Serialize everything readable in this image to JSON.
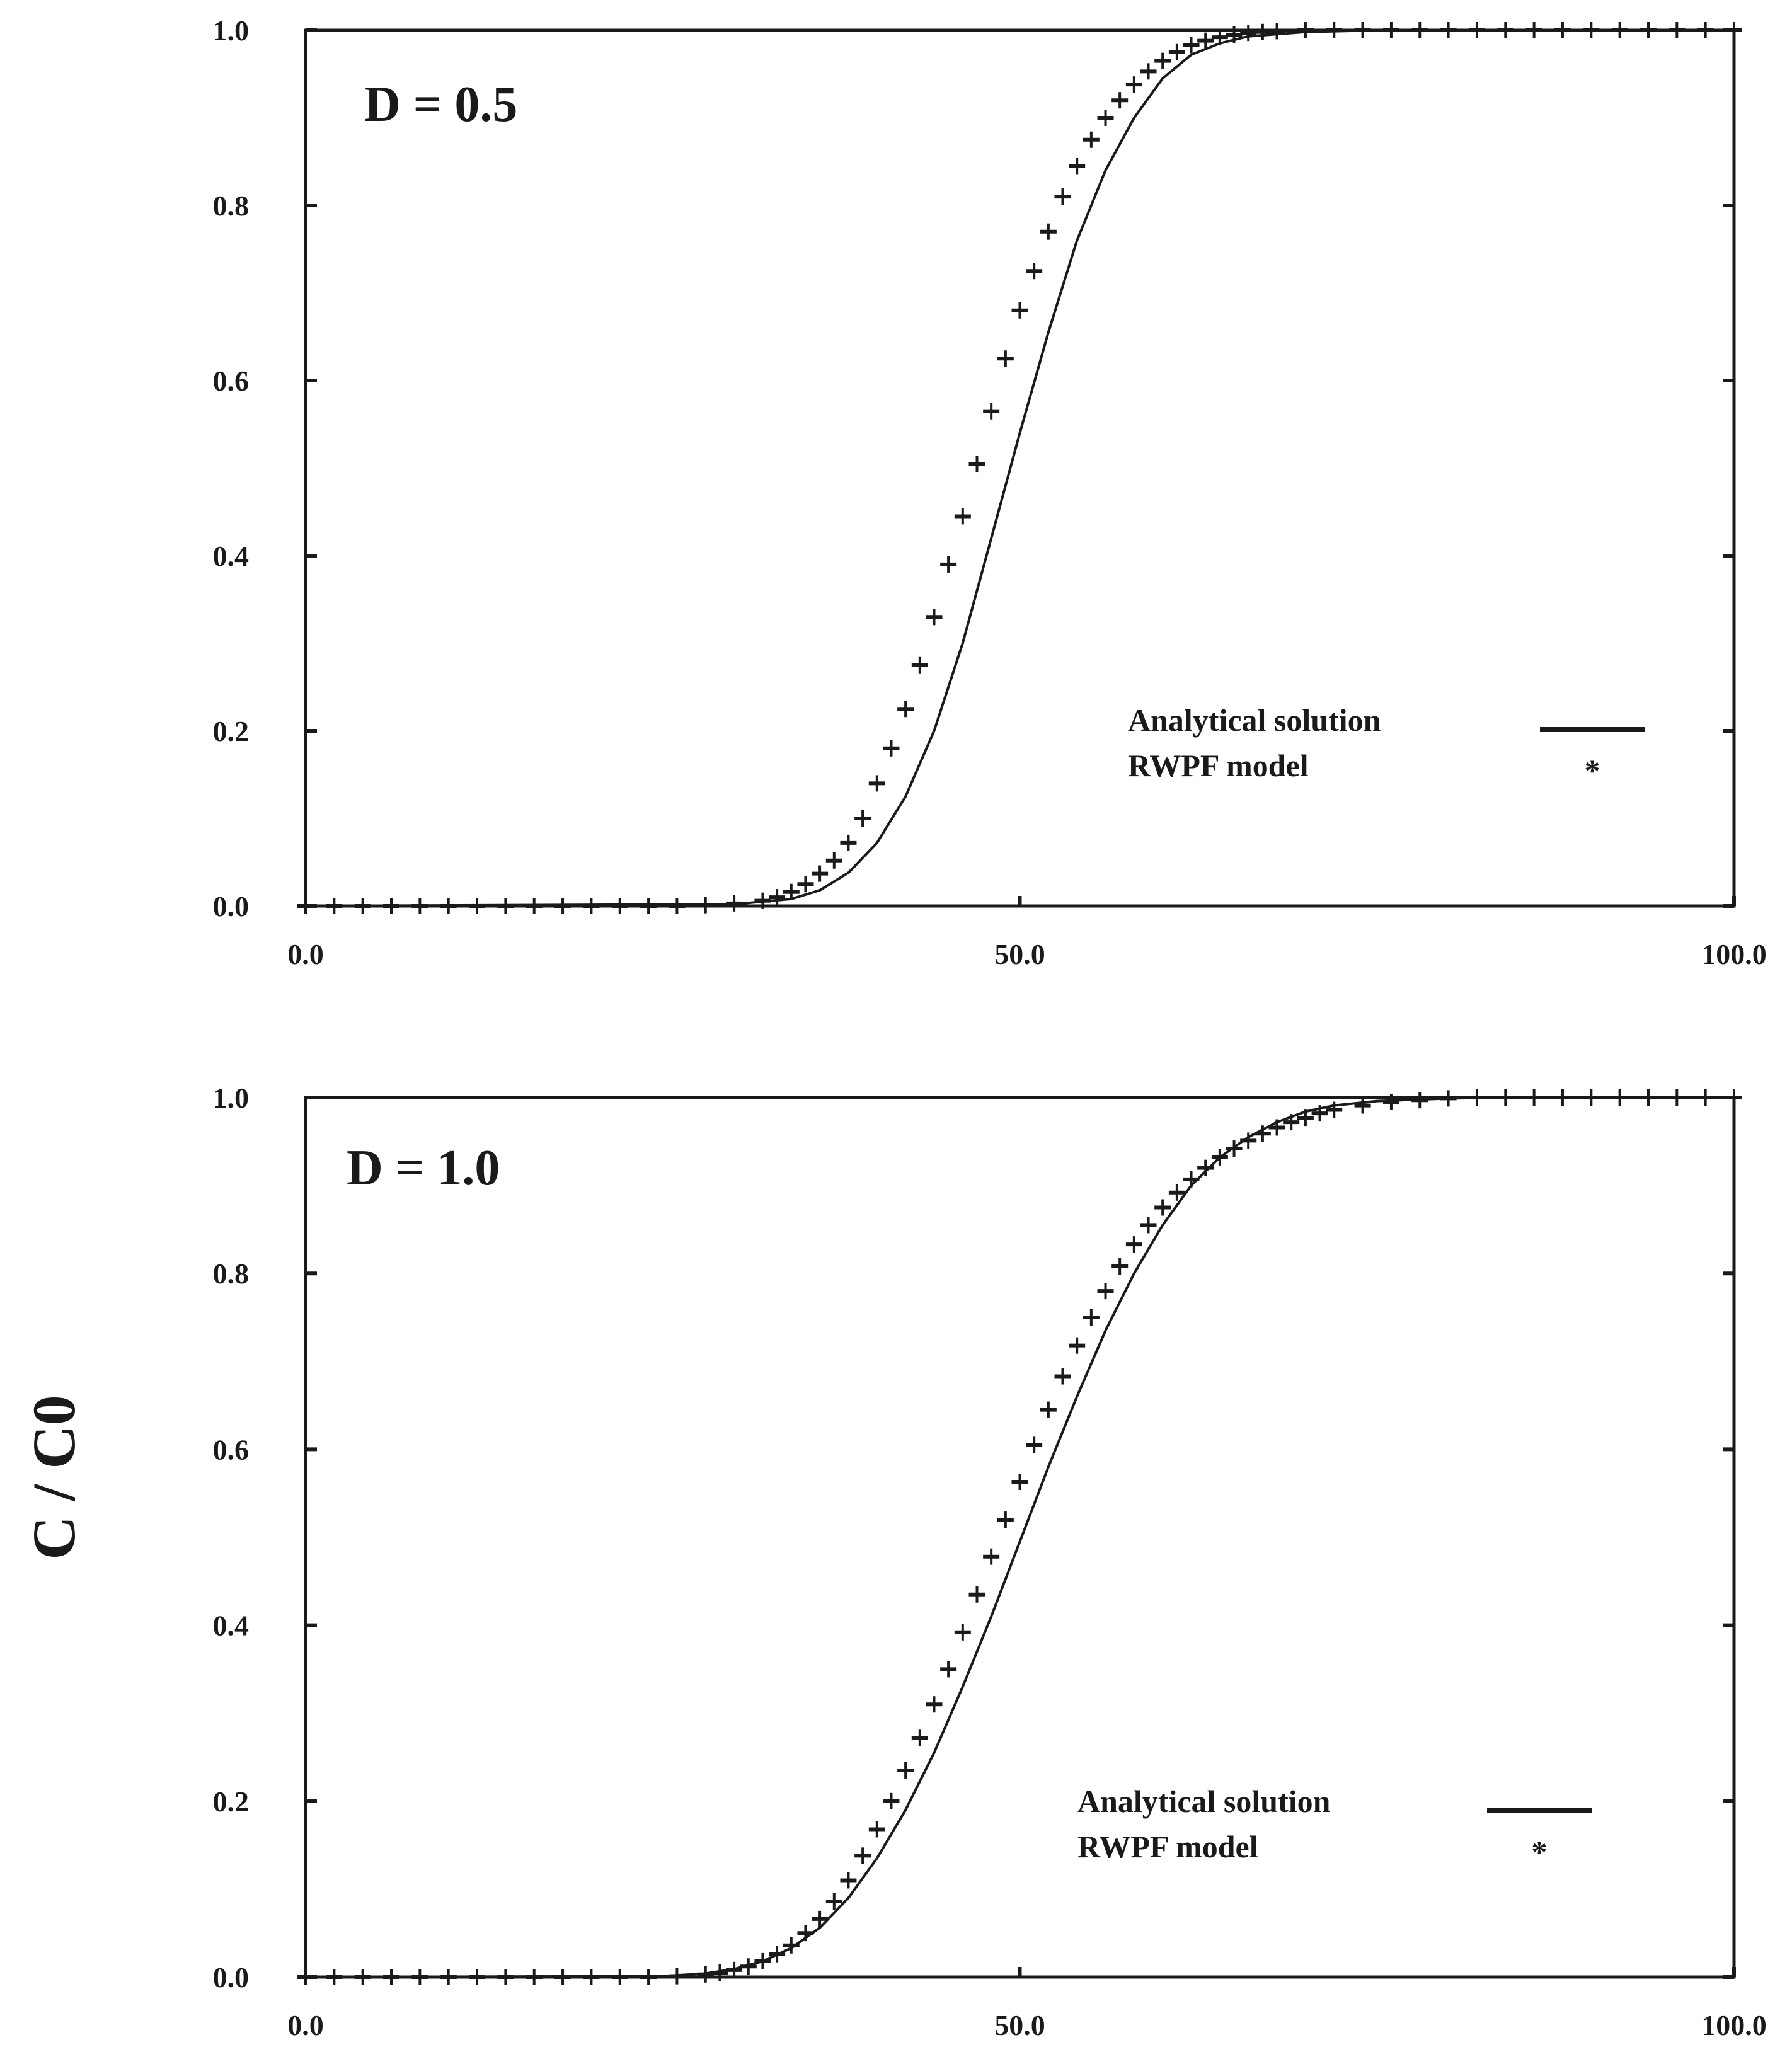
{
  "ylabel": "C / C0",
  "legend": {
    "analytical_label": "Analytical solution",
    "rwpf_label": "RWPF model",
    "rwpf_symbol": "*"
  },
  "chart_data": [
    {
      "type": "line",
      "annotation": "D = 0.5",
      "xlim": [
        0,
        100
      ],
      "ylim": [
        0,
        1
      ],
      "x_tick_labels": [
        "0.0",
        "50.0",
        "100.0"
      ],
      "y_tick_labels": [
        "0.0",
        "0.2",
        "0.4",
        "0.6",
        "0.8",
        "1.0"
      ],
      "legend_position": "lower-right",
      "series": [
        {
          "name": "Analytical solution",
          "style": "line",
          "x": [
            0,
            30,
            34,
            36,
            38,
            40,
            42,
            44,
            46,
            48,
            50,
            52,
            54,
            56,
            58,
            60,
            62,
            64,
            66,
            70,
            75,
            80,
            100
          ],
          "y": [
            0,
            0.002,
            0.008,
            0.018,
            0.038,
            0.072,
            0.125,
            0.2,
            0.3,
            0.42,
            0.54,
            0.655,
            0.76,
            0.84,
            0.9,
            0.945,
            0.972,
            0.985,
            0.993,
            0.998,
            1.0,
            1.0,
            1.0
          ]
        },
        {
          "name": "RWPF model",
          "style": "markers",
          "x": [
            0,
            2,
            4,
            6,
            8,
            10,
            12,
            14,
            16,
            18,
            20,
            22,
            24,
            26,
            28,
            30,
            32,
            33,
            34,
            35,
            36,
            37,
            38,
            39,
            40,
            41,
            42,
            43,
            44,
            45,
            46,
            47,
            48,
            49,
            50,
            51,
            52,
            53,
            54,
            55,
            56,
            57,
            58,
            59,
            60,
            61,
            62,
            63,
            64,
            65,
            66,
            67,
            68,
            70,
            72,
            74,
            76,
            78,
            80,
            82,
            84,
            86,
            88,
            90,
            92,
            94,
            96,
            98,
            100
          ],
          "y": [
            0,
            0,
            0,
            0,
            0,
            0,
            0,
            0,
            0,
            0,
            0,
            0,
            0,
            0,
            0.001,
            0.003,
            0.006,
            0.01,
            0.016,
            0.025,
            0.037,
            0.052,
            0.072,
            0.1,
            0.14,
            0.18,
            0.225,
            0.275,
            0.33,
            0.39,
            0.445,
            0.505,
            0.565,
            0.625,
            0.68,
            0.725,
            0.77,
            0.81,
            0.845,
            0.875,
            0.9,
            0.92,
            0.938,
            0.953,
            0.965,
            0.975,
            0.983,
            0.988,
            0.992,
            0.995,
            0.997,
            0.998,
            0.999,
            1.0,
            1.0,
            1.0,
            1.0,
            1.0,
            1.0,
            1.0,
            1.0,
            1.0,
            1.0,
            1.0,
            1.0,
            1.0,
            1.0,
            1.0,
            1.0
          ]
        }
      ]
    },
    {
      "type": "line",
      "annotation": "D = 1.0",
      "xlim": [
        0,
        100
      ],
      "ylim": [
        0,
        1
      ],
      "x_tick_labels": [
        "0.0",
        "50.0",
        "100.0"
      ],
      "y_tick_labels": [
        "0.0",
        "0.2",
        "0.4",
        "0.6",
        "0.8",
        "1.0"
      ],
      "legend_position": "lower-right",
      "series": [
        {
          "name": "Analytical solution",
          "style": "line",
          "x": [
            0,
            25,
            28,
            30,
            32,
            34,
            36,
            38,
            40,
            42,
            44,
            46,
            48,
            50,
            52,
            54,
            56,
            58,
            60,
            62,
            64,
            66,
            68,
            70,
            72,
            75,
            80,
            85,
            100
          ],
          "y": [
            0,
            0.001,
            0.004,
            0.009,
            0.018,
            0.033,
            0.056,
            0.09,
            0.135,
            0.19,
            0.255,
            0.33,
            0.41,
            0.495,
            0.58,
            0.66,
            0.735,
            0.8,
            0.855,
            0.9,
            0.932,
            0.955,
            0.972,
            0.984,
            0.991,
            0.996,
            0.999,
            1.0,
            1.0
          ]
        },
        {
          "name": "RWPF model",
          "style": "markers",
          "x": [
            0,
            2,
            4,
            6,
            8,
            10,
            12,
            14,
            16,
            18,
            20,
            22,
            24,
            26,
            28,
            29,
            30,
            31,
            32,
            33,
            34,
            35,
            36,
            37,
            38,
            39,
            40,
            41,
            42,
            43,
            44,
            45,
            46,
            47,
            48,
            49,
            50,
            51,
            52,
            53,
            54,
            55,
            56,
            57,
            58,
            59,
            60,
            61,
            62,
            63,
            64,
            65,
            66,
            67,
            68,
            69,
            70,
            71,
            72,
            74,
            76,
            78,
            80,
            82,
            84,
            86,
            88,
            90,
            92,
            94,
            96,
            98,
            100
          ],
          "y": [
            0,
            0,
            0,
            0,
            0,
            0,
            0,
            0,
            0,
            0,
            0,
            0,
            0,
            0.001,
            0.003,
            0.005,
            0.008,
            0.012,
            0.018,
            0.026,
            0.036,
            0.05,
            0.066,
            0.086,
            0.11,
            0.138,
            0.168,
            0.2,
            0.235,
            0.272,
            0.31,
            0.35,
            0.392,
            0.435,
            0.478,
            0.52,
            0.563,
            0.605,
            0.645,
            0.683,
            0.718,
            0.75,
            0.78,
            0.808,
            0.833,
            0.855,
            0.875,
            0.892,
            0.907,
            0.92,
            0.932,
            0.942,
            0.951,
            0.959,
            0.966,
            0.972,
            0.977,
            0.982,
            0.986,
            0.991,
            0.995,
            0.997,
            0.999,
            1.0,
            1.0,
            1.0,
            1.0,
            1.0,
            1.0,
            1.0,
            1.0,
            1.0,
            1.0
          ]
        }
      ]
    }
  ]
}
